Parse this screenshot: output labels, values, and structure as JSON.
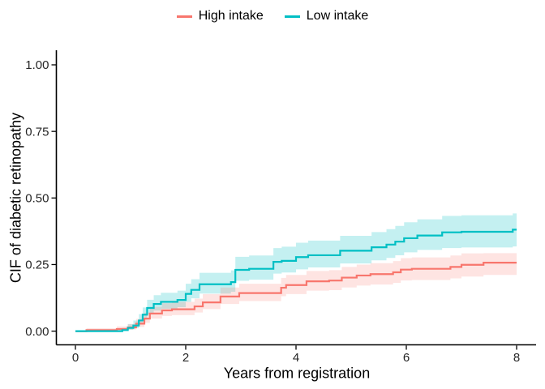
{
  "colors": {
    "high_intake": "#F8766D",
    "low_intake": "#00BFC4",
    "axis": "#000000",
    "tick_label": "#262626",
    "background": "#FFFFFF"
  },
  "chart_data": {
    "type": "line",
    "subtype": "step-function-cumulative-incidence-with-confidence-bands",
    "title": "",
    "xlabel": "Years from registration",
    "ylabel": "CIF of diabetic retinopathy",
    "xlim": [
      0,
      8
    ],
    "ylim": [
      0,
      1
    ],
    "grid": false,
    "legend_position": "top-center",
    "xtick_values": [
      0,
      2,
      4,
      6,
      8
    ],
    "xtick_labels": [
      "0",
      "2",
      "4",
      "6",
      "8"
    ],
    "ytick_values": [
      0,
      0.25,
      0.5,
      0.75,
      1.0
    ],
    "ytick_labels": [
      "0.00",
      "0.25",
      "0.50",
      "0.75",
      "1.00"
    ],
    "point_format": "[years, cif, ci_lower, ci_upper]",
    "series": [
      {
        "name": "High intake",
        "color": "#F8766D",
        "band_opacity": 0.2,
        "points": [
          [
            0,
            0,
            0,
            0
          ],
          [
            0.2,
            0.004,
            0.001,
            0.011
          ],
          [
            0.75,
            0.008,
            0.003,
            0.018
          ],
          [
            0.95,
            0.014,
            0.006,
            0.027
          ],
          [
            1.1,
            0.028,
            0.016,
            0.046
          ],
          [
            1.25,
            0.047,
            0.031,
            0.069
          ],
          [
            1.35,
            0.066,
            0.047,
            0.091
          ],
          [
            1.57,
            0.078,
            0.057,
            0.105
          ],
          [
            1.75,
            0.082,
            0.06,
            0.11
          ],
          [
            2.16,
            0.093,
            0.07,
            0.122
          ],
          [
            2.31,
            0.108,
            0.083,
            0.139
          ],
          [
            2.63,
            0.13,
            0.102,
            0.164
          ],
          [
            2.97,
            0.143,
            0.113,
            0.178
          ],
          [
            3.73,
            0.163,
            0.131,
            0.2
          ],
          [
            3.82,
            0.173,
            0.139,
            0.211
          ],
          [
            4.19,
            0.187,
            0.152,
            0.226
          ],
          [
            4.6,
            0.19,
            0.154,
            0.229
          ],
          [
            4.83,
            0.201,
            0.164,
            0.241
          ],
          [
            5.1,
            0.209,
            0.171,
            0.25
          ],
          [
            5.35,
            0.214,
            0.175,
            0.255
          ],
          [
            5.76,
            0.221,
            0.181,
            0.263
          ],
          [
            5.9,
            0.231,
            0.19,
            0.274
          ],
          [
            6.1,
            0.234,
            0.192,
            0.277
          ],
          [
            6.8,
            0.241,
            0.198,
            0.284
          ],
          [
            7.0,
            0.249,
            0.205,
            0.292
          ],
          [
            7.4,
            0.257,
            0.211,
            0.293
          ],
          [
            8,
            0.257,
            0.211,
            0.293
          ]
        ]
      },
      {
        "name": "Low intake",
        "color": "#00BFC4",
        "band_opacity": 0.23,
        "points": [
          [
            0,
            0,
            0,
            0
          ],
          [
            0.85,
            0.004,
            0.001,
            0.012
          ],
          [
            0.95,
            0.012,
            0.005,
            0.026
          ],
          [
            1.05,
            0.021,
            0.011,
            0.04
          ],
          [
            1.15,
            0.04,
            0.025,
            0.064
          ],
          [
            1.22,
            0.062,
            0.043,
            0.089
          ],
          [
            1.3,
            0.087,
            0.064,
            0.118
          ],
          [
            1.42,
            0.102,
            0.077,
            0.135
          ],
          [
            1.55,
            0.11,
            0.084,
            0.144
          ],
          [
            1.85,
            0.117,
            0.09,
            0.152
          ],
          [
            2.0,
            0.14,
            0.11,
            0.178
          ],
          [
            2.1,
            0.155,
            0.123,
            0.195
          ],
          [
            2.25,
            0.176,
            0.141,
            0.219
          ],
          [
            2.82,
            0.184,
            0.148,
            0.228
          ],
          [
            2.9,
            0.23,
            0.189,
            0.279
          ],
          [
            3.15,
            0.234,
            0.193,
            0.284
          ],
          [
            3.59,
            0.26,
            0.216,
            0.312
          ],
          [
            3.74,
            0.264,
            0.22,
            0.317
          ],
          [
            4.0,
            0.278,
            0.232,
            0.332
          ],
          [
            4.22,
            0.285,
            0.239,
            0.34
          ],
          [
            4.8,
            0.302,
            0.254,
            0.358
          ],
          [
            5.37,
            0.315,
            0.266,
            0.372
          ],
          [
            5.64,
            0.325,
            0.275,
            0.383
          ],
          [
            5.8,
            0.336,
            0.285,
            0.395
          ],
          [
            5.96,
            0.349,
            0.296,
            0.409
          ],
          [
            6.2,
            0.359,
            0.305,
            0.42
          ],
          [
            6.65,
            0.371,
            0.312,
            0.433
          ],
          [
            7.0,
            0.373,
            0.314,
            0.435
          ],
          [
            7.93,
            0.381,
            0.318,
            0.442
          ],
          [
            8,
            0.381,
            0.318,
            0.442
          ]
        ]
      }
    ]
  }
}
